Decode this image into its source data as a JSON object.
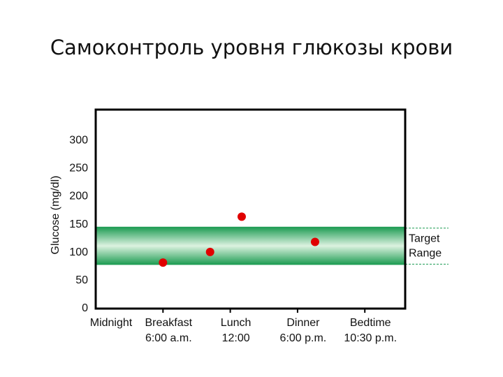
{
  "chart_data": {
    "type": "scatter",
    "title": "Самоконтроль уровня глюкозы крови",
    "y_label": "Glucose (mg/dl)",
    "x": [
      1.0,
      1.7,
      2.17,
      3.26
    ],
    "values": [
      82,
      101,
      164,
      119
    ],
    "color": "#e00000",
    "xlim": [
      0,
      4.6
    ],
    "xticks": [
      {
        "value": 0,
        "label": [
          "Midnight"
        ]
      },
      {
        "value": 1,
        "label": [
          "Breakfast",
          "6:00 a.m."
        ]
      },
      {
        "value": 2,
        "label": [
          "Lunch",
          "12:00"
        ]
      },
      {
        "value": 3,
        "label": [
          "Dinner",
          "6:00 p.m."
        ]
      },
      {
        "value": 4,
        "label": [
          "Bedtime",
          "10:30 p.m."
        ]
      }
    ],
    "ylim": [
      0,
      355
    ],
    "yticks": [
      0,
      50,
      100,
      150,
      200,
      250,
      300
    ],
    "target_range": {
      "label": [
        "Target",
        "Range"
      ],
      "range": [
        78,
        146
      ],
      "color": "#1a9a50"
    }
  }
}
